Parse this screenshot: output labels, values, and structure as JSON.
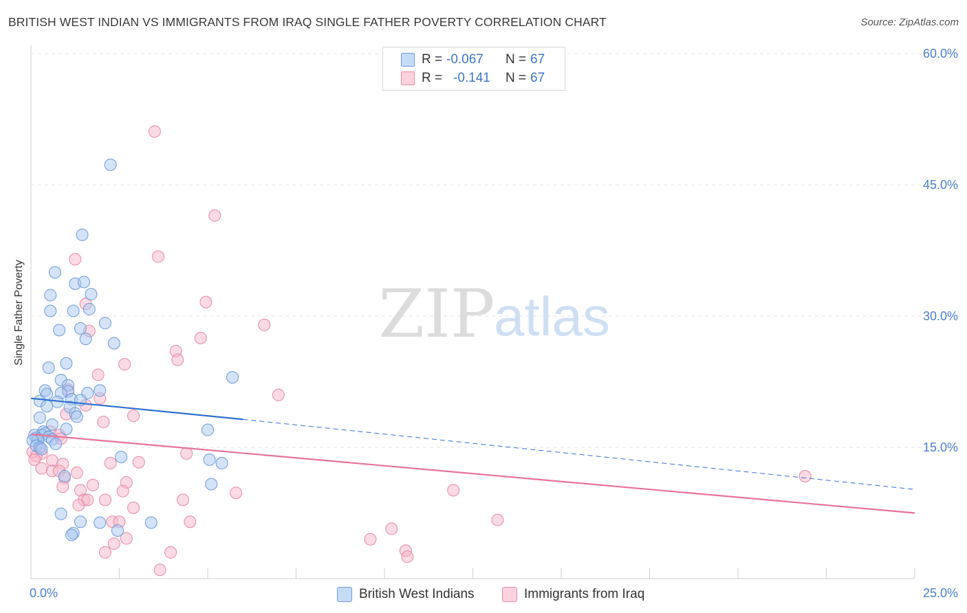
{
  "header": {
    "title": "BRITISH WEST INDIAN VS IMMIGRANTS FROM IRAQ SINGLE FATHER POVERTY CORRELATION CHART",
    "source": "Source: ZipAtlas.com"
  },
  "watermark": {
    "zip": "ZIP",
    "atlas": "atlas"
  },
  "stats": [
    {
      "r_label": "R =",
      "r_value": "-0.067",
      "n_label": "N =",
      "n_value": "67",
      "color": "#a9c8f0"
    },
    {
      "r_label": "R =",
      "r_value": "-0.141",
      "n_label": "N =",
      "n_value": "67",
      "color": "#f5b6c9"
    }
  ],
  "colors": {
    "blue_fill": "#a9c8f0",
    "blue_stroke": "#6c9bd8",
    "blue_line": "#2f6fd0",
    "pink_fill": "#f5b6c9",
    "pink_stroke": "#e58aa6",
    "pink_line": "#e8729a",
    "tick_label": "#4a7fcf",
    "grid": "#e3e3e3"
  },
  "chart_data": {
    "type": "scatter",
    "title": "BRITISH WEST INDIAN VS IMMIGRANTS FROM IRAQ SINGLE FATHER POVERTY CORRELATION CHART",
    "xlabel": "",
    "ylabel": "Single Father Poverty",
    "xlim": [
      0,
      25
    ],
    "ylim": [
      0,
      60
    ],
    "x_tick_labels": [
      "0.0%",
      "25.0%"
    ],
    "y_ticks": [
      15,
      30,
      45,
      60
    ],
    "y_tick_labels": [
      "15.0%",
      "30.0%",
      "45.0%",
      "60.0%"
    ],
    "legend": [
      "British West Indians",
      "Immigrants from Iraq"
    ],
    "series": [
      {
        "name": "British West Indians",
        "R": -0.067,
        "N": 67,
        "trend": {
          "solid": [
            [
              0,
              20.6
            ],
            [
              6.0,
              18.2
            ]
          ],
          "dashed": [
            [
              6.0,
              18.2
            ],
            [
              25,
              10.2
            ]
          ]
        },
        "points": [
          [
            2.25,
            47.3
          ],
          [
            1.45,
            39.3
          ],
          [
            0.68,
            35.0
          ],
          [
            1.25,
            33.7
          ],
          [
            1.5,
            33.9
          ],
          [
            0.55,
            32.4
          ],
          [
            1.7,
            32.5
          ],
          [
            1.2,
            30.6
          ],
          [
            0.55,
            30.6
          ],
          [
            1.65,
            30.8
          ],
          [
            2.1,
            29.2
          ],
          [
            0.8,
            28.4
          ],
          [
            1.4,
            28.6
          ],
          [
            1.55,
            27.4
          ],
          [
            2.35,
            26.9
          ],
          [
            1.0,
            24.6
          ],
          [
            0.5,
            24.1
          ],
          [
            5.7,
            23.0
          ],
          [
            0.85,
            22.7
          ],
          [
            1.05,
            22.1
          ],
          [
            0.4,
            21.5
          ],
          [
            1.05,
            21.4
          ],
          [
            1.95,
            21.5
          ],
          [
            0.45,
            21.1
          ],
          [
            0.85,
            21.2
          ],
          [
            1.6,
            21.2
          ],
          [
            1.15,
            20.5
          ],
          [
            0.25,
            20.3
          ],
          [
            1.4,
            20.4
          ],
          [
            0.75,
            20.2
          ],
          [
            0.45,
            19.7
          ],
          [
            1.1,
            19.6
          ],
          [
            1.25,
            18.9
          ],
          [
            1.3,
            18.5
          ],
          [
            0.25,
            18.4
          ],
          [
            0.6,
            17.6
          ],
          [
            1.0,
            17.1
          ],
          [
            5.0,
            17.0
          ],
          [
            0.35,
            16.8
          ],
          [
            0.4,
            16.6
          ],
          [
            0.1,
            16.4
          ],
          [
            0.3,
            16.4
          ],
          [
            0.5,
            16.2
          ],
          [
            0.15,
            16.1
          ],
          [
            0.2,
            15.9
          ],
          [
            0.6,
            15.9
          ],
          [
            0.05,
            15.8
          ],
          [
            0.7,
            15.4
          ],
          [
            0.15,
            15.2
          ],
          [
            0.25,
            15.0
          ],
          [
            0.3,
            14.8
          ],
          [
            2.55,
            13.9
          ],
          [
            5.05,
            13.6
          ],
          [
            5.4,
            13.2
          ],
          [
            0.95,
            11.7
          ],
          [
            5.1,
            10.8
          ],
          [
            0.85,
            7.4
          ],
          [
            1.4,
            6.5
          ],
          [
            1.95,
            6.4
          ],
          [
            3.4,
            6.4
          ],
          [
            2.45,
            5.5
          ],
          [
            1.2,
            5.2
          ],
          [
            1.15,
            5.0
          ]
        ]
      },
      {
        "name": "Immigrants from Iraq",
        "R": -0.141,
        "N": 67,
        "trend": {
          "solid": [
            [
              0,
              16.5
            ],
            [
              25,
              7.5
            ]
          ]
        },
        "points": [
          [
            3.5,
            51.1
          ],
          [
            5.2,
            41.5
          ],
          [
            3.6,
            36.8
          ],
          [
            1.25,
            36.5
          ],
          [
            1.55,
            31.4
          ],
          [
            4.95,
            31.6
          ],
          [
            6.6,
            29.0
          ],
          [
            1.65,
            28.3
          ],
          [
            4.8,
            27.5
          ],
          [
            4.1,
            26.0
          ],
          [
            4.15,
            25.0
          ],
          [
            2.65,
            24.5
          ],
          [
            1.9,
            23.3
          ],
          [
            1.05,
            21.6
          ],
          [
            7.0,
            21.0
          ],
          [
            1.95,
            20.6
          ],
          [
            1.55,
            19.8
          ],
          [
            1.0,
            18.8
          ],
          [
            2.9,
            18.6
          ],
          [
            2.05,
            17.9
          ],
          [
            0.55,
            16.8
          ],
          [
            0.8,
            16.4
          ],
          [
            0.85,
            16.0
          ],
          [
            0.25,
            15.0
          ],
          [
            0.05,
            14.5
          ],
          [
            0.3,
            14.3
          ],
          [
            0.15,
            14.0
          ],
          [
            4.4,
            14.3
          ],
          [
            0.1,
            13.6
          ],
          [
            0.6,
            13.5
          ],
          [
            2.25,
            13.2
          ],
          [
            3.05,
            13.3
          ],
          [
            0.9,
            13.1
          ],
          [
            0.3,
            12.6
          ],
          [
            0.6,
            12.3
          ],
          [
            0.8,
            12.3
          ],
          [
            1.3,
            12.1
          ],
          [
            0.95,
            11.5
          ],
          [
            2.7,
            11.0
          ],
          [
            1.75,
            10.7
          ],
          [
            0.9,
            10.5
          ],
          [
            1.4,
            10.1
          ],
          [
            2.6,
            10.0
          ],
          [
            11.95,
            10.1
          ],
          [
            5.8,
            9.8
          ],
          [
            1.5,
            9.0
          ],
          [
            1.6,
            9.0
          ],
          [
            2.1,
            9.0
          ],
          [
            4.3,
            9.0
          ],
          [
            1.35,
            8.4
          ],
          [
            2.9,
            8.1
          ],
          [
            21.9,
            11.7
          ],
          [
            13.2,
            6.7
          ],
          [
            2.3,
            6.5
          ],
          [
            2.5,
            6.5
          ],
          [
            4.5,
            6.5
          ],
          [
            10.2,
            5.7
          ],
          [
            2.7,
            4.6
          ],
          [
            9.6,
            4.5
          ],
          [
            2.35,
            4.0
          ],
          [
            2.1,
            3.0
          ],
          [
            3.95,
            3.0
          ],
          [
            10.6,
            3.2
          ],
          [
            10.65,
            2.5
          ],
          [
            3.65,
            1.0
          ]
        ]
      }
    ]
  }
}
